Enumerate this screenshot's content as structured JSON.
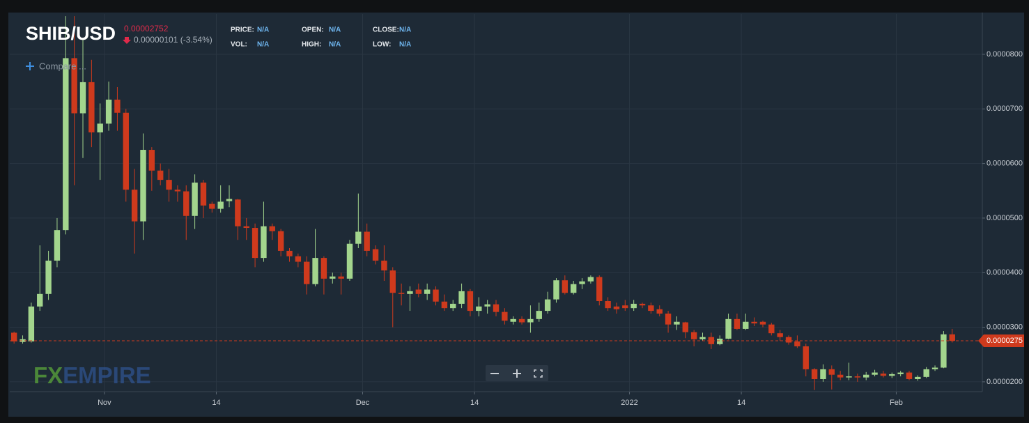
{
  "header": {
    "symbol": "SHIB/USD",
    "price": "0.00002752",
    "change": "0.00000101 (-3.54%)",
    "stats": [
      {
        "label": "PRICE:",
        "value": "N/A"
      },
      {
        "label": "VOL:",
        "value": "N/A"
      },
      {
        "label": "OPEN:",
        "value": "N/A"
      },
      {
        "label": "HIGH:",
        "value": "N/A"
      },
      {
        "label": "CLOSE:",
        "value": "N/A"
      },
      {
        "label": "LOW:",
        "value": "N/A"
      }
    ],
    "compare": "Compare ...",
    "logo": [
      "FX",
      "EMPIRE"
    ]
  },
  "chart_data": {
    "type": "candlestick",
    "x": [
      "2021-10-21",
      "2021-10-22",
      "2021-10-23",
      "2021-10-24",
      "2021-10-25",
      "2021-10-26",
      "2021-10-27",
      "2021-10-28",
      "2021-10-29",
      "2021-10-30",
      "2021-10-31",
      "2021-11-01",
      "2021-11-02",
      "2021-11-03",
      "2021-11-04",
      "2021-11-05",
      "2021-11-06",
      "2021-11-07",
      "2021-11-08",
      "2021-11-09",
      "2021-11-10",
      "2021-11-11",
      "2021-11-12",
      "2021-11-13",
      "2021-11-14",
      "2021-11-15",
      "2021-11-16",
      "2021-11-17",
      "2021-11-18",
      "2021-11-19",
      "2021-11-20",
      "2021-11-21",
      "2021-11-22",
      "2021-11-23",
      "2021-11-24",
      "2021-11-25",
      "2021-11-26",
      "2021-11-27",
      "2021-11-28",
      "2021-11-29",
      "2021-11-30",
      "2021-12-01",
      "2021-12-02",
      "2021-12-03",
      "2021-12-04",
      "2021-12-05",
      "2021-12-06",
      "2021-12-07",
      "2021-12-08",
      "2021-12-09",
      "2021-12-10",
      "2021-12-11",
      "2021-12-12",
      "2021-12-13",
      "2021-12-14",
      "2021-12-15",
      "2021-12-16",
      "2021-12-17",
      "2021-12-18",
      "2021-12-19",
      "2021-12-20",
      "2021-12-21",
      "2021-12-22",
      "2021-12-23",
      "2021-12-24",
      "2021-12-25",
      "2021-12-26",
      "2021-12-27",
      "2021-12-28",
      "2021-12-29",
      "2021-12-30",
      "2021-12-31",
      "2022-01-01",
      "2022-01-02",
      "2022-01-03",
      "2022-01-04",
      "2022-01-05",
      "2022-01-06",
      "2022-01-07",
      "2022-01-08",
      "2022-01-09",
      "2022-01-10",
      "2022-01-11",
      "2022-01-12",
      "2022-01-13",
      "2022-01-14",
      "2022-01-15",
      "2022-01-16",
      "2022-01-17",
      "2022-01-18",
      "2022-01-19",
      "2022-01-20",
      "2022-01-21",
      "2022-01-22",
      "2022-01-23",
      "2022-01-24",
      "2022-01-25",
      "2022-01-26",
      "2022-01-27",
      "2022-01-28",
      "2022-01-29",
      "2022-01-30",
      "2022-01-31",
      "2022-02-01",
      "2022-02-02",
      "2022-02-03",
      "2022-02-04",
      "2022-02-05",
      "2022-02-06",
      "2022-02-07"
    ],
    "open": [
      2.9e-05,
      2.73e-05,
      2.74e-05,
      3.38e-05,
      3.61e-05,
      4.22e-05,
      4.78e-05,
      7.93e-05,
      6.92e-05,
      7.49e-05,
      6.57e-05,
      6.73e-05,
      7.17e-05,
      6.93e-05,
      5.52e-05,
      4.94e-05,
      6.25e-05,
      5.87e-05,
      5.7e-05,
      5.52e-05,
      5.49e-05,
      5.04e-05,
      5.65e-05,
      5.26e-05,
      5.17e-05,
      5.31e-05,
      5.34e-05,
      4.85e-05,
      4.82e-05,
      4.27e-05,
      4.85e-05,
      4.76e-05,
      4.4e-05,
      4.3e-05,
      4.2e-05,
      3.79e-05,
      4.27e-05,
      3.89e-05,
      3.93e-05,
      3.89e-05,
      4.53e-05,
      4.75e-05,
      4.43e-05,
      4.22e-05,
      4.04e-05,
      3.63e-05,
      3.61e-05,
      3.69e-05,
      3.61e-05,
      3.69e-05,
      3.47e-05,
      3.35e-05,
      3.43e-05,
      3.66e-05,
      3.3e-05,
      3.38e-05,
      3.42e-05,
      3.28e-05,
      3.1e-05,
      3.15e-05,
      3.09e-05,
      3.15e-05,
      3.3e-05,
      3.51e-05,
      3.86e-05,
      3.63e-05,
      3.79e-05,
      3.84e-05,
      3.92e-05,
      3.48e-05,
      3.38e-05,
      3.4e-05,
      3.35e-05,
      3.43e-05,
      3.4e-05,
      3.33e-05,
      3.25e-05,
      3.05e-05,
      3.09e-05,
      2.91e-05,
      2.78e-05,
      2.82e-05,
      2.69e-05,
      2.79e-05,
      3.15e-05,
      2.97e-05,
      3.1e-05,
      3.1e-05,
      3.05e-05,
      2.89e-05,
      2.82e-05,
      2.74e-05,
      2.65e-05,
      2.23e-05,
      2.05e-05,
      2.23e-05,
      2.13e-05,
      2.08e-05,
      2.1e-05,
      2.08e-05,
      2.13e-05,
      2.15e-05,
      2.11e-05,
      2.14e-05,
      2.17e-05,
      2.05e-05,
      2.09e-05,
      2.23e-05,
      2.26e-05,
      2.87e-05
    ],
    "high": [
      2.92e-05,
      2.85e-05,
      3.45e-05,
      4.5e-05,
      4.4e-05,
      5e-05,
      8.7e-05,
      8.7e-05,
      8.3e-05,
      7.9e-05,
      7.1e-05,
      7.5e-05,
      7.4e-05,
      7e-05,
      5.9e-05,
      6.55e-05,
      6.3e-05,
      6e-05,
      5.9e-05,
      5.6e-05,
      5.6e-05,
      5.8e-05,
      5.7e-05,
      5.3e-05,
      5.6e-05,
      5.6e-05,
      5.35e-05,
      5e-05,
      4.9e-05,
      5.3e-05,
      4.9e-05,
      4.8e-05,
      4.45e-05,
      4.35e-05,
      4.3e-05,
      4.8e-05,
      4.3e-05,
      4e-05,
      4e-05,
      4.6e-05,
      5.45e-05,
      4.9e-05,
      4.5e-05,
      4.5e-05,
      4.1e-05,
      3.8e-05,
      3.75e-05,
      3.8e-05,
      3.8e-05,
      3.75e-05,
      3.6e-05,
      3.5e-05,
      3.8e-05,
      3.7e-05,
      3.55e-05,
      3.5e-05,
      3.5e-05,
      3.35e-05,
      3.2e-05,
      3.2e-05,
      3.4e-05,
      3.45e-05,
      3.65e-05,
      3.9e-05,
      3.95e-05,
      3.85e-05,
      3.9e-05,
      3.95e-05,
      3.95e-05,
      3.55e-05,
      3.45e-05,
      3.5e-05,
      3.5e-05,
      3.45e-05,
      3.45e-05,
      3.4e-05,
      3.3e-05,
      3.2e-05,
      3.1e-05,
      2.95e-05,
      2.9e-05,
      2.9e-05,
      2.85e-05,
      3.25e-05,
      3.25e-05,
      3.25e-05,
      3.18e-05,
      3.12e-05,
      3.08e-05,
      2.95e-05,
      2.85e-05,
      2.85e-05,
      2.7e-05,
      2.25e-05,
      2.32e-05,
      2.3e-05,
      2.2e-05,
      2.35e-05,
      2.15e-05,
      2.18e-05,
      2.22e-05,
      2.2e-05,
      2.17e-05,
      2.2e-05,
      2.2e-05,
      2.12e-05,
      2.27e-05,
      2.3e-05,
      2.93e-05,
      2.97e-05
    ],
    "low": [
      2.7e-05,
      2.7e-05,
      2.72e-05,
      3.3e-05,
      3.5e-05,
      4.1e-05,
      4.7e-05,
      5.6e-05,
      6.1e-05,
      6.3e-05,
      5.7e-05,
      6.6e-05,
      6.6e-05,
      5.3e-05,
      4.35e-05,
      4.6e-05,
      5.5e-05,
      5.6e-05,
      5.3e-05,
      5.3e-05,
      4.6e-05,
      4.8e-05,
      5e-05,
      5.1e-05,
      5.1e-05,
      5.2e-05,
      4.6e-05,
      4.6e-05,
      4.1e-05,
      4.2e-05,
      4.6e-05,
      4.3e-05,
      4.2e-05,
      4.1e-05,
      3.6e-05,
      3.75e-05,
      3.6e-05,
      3.8e-05,
      3.6e-05,
      3.85e-05,
      4.45e-05,
      4.3e-05,
      4.15e-05,
      3.85e-05,
      3e-05,
      3.4e-05,
      3.3e-05,
      3.55e-05,
      3.5e-05,
      3.4e-05,
      3.3e-05,
      3.3e-05,
      3.35e-05,
      3.2e-05,
      3.2e-05,
      3.25e-05,
      3.2e-05,
      3.05e-05,
      3.05e-05,
      3.05e-05,
      2.9e-05,
      3.1e-05,
      3.25e-05,
      3.45e-05,
      3.6e-05,
      3.6e-05,
      3.7e-05,
      3.8e-05,
      3.4e-05,
      3.3e-05,
      3.25e-05,
      3.3e-05,
      3.3e-05,
      3.35e-05,
      3.25e-05,
      3.2e-05,
      2.9e-05,
      2.95e-05,
      2.8e-05,
      2.65e-05,
      2.75e-05,
      2.6e-05,
      2.67e-05,
      2.78e-05,
      2.95e-05,
      2.95e-05,
      3.02e-05,
      3e-05,
      2.85e-05,
      2.75e-05,
      2.68e-05,
      2.62e-05,
      2.1e-05,
      1.85e-05,
      2e-05,
      1.86e-05,
      2.03e-05,
      2.03e-05,
      2e-05,
      2.03e-05,
      2.1e-05,
      2.08e-05,
      2.07e-05,
      2.1e-05,
      2.03e-05,
      2.02e-05,
      2.07e-05,
      2.2e-05,
      2.25e-05,
      2.72e-05
    ],
    "close": [
      2.74e-05,
      2.78e-05,
      3.38e-05,
      3.61e-05,
      4.22e-05,
      4.78e-05,
      7.93e-05,
      6.92e-05,
      7.49e-05,
      6.57e-05,
      6.73e-05,
      7.17e-05,
      6.93e-05,
      5.52e-05,
      4.94e-05,
      6.25e-05,
      5.87e-05,
      5.7e-05,
      5.52e-05,
      5.49e-05,
      5.04e-05,
      5.65e-05,
      5.23e-05,
      5.17e-05,
      5.3e-05,
      5.35e-05,
      4.85e-05,
      4.82e-05,
      4.27e-05,
      4.85e-05,
      4.76e-05,
      4.4e-05,
      4.3e-05,
      4.2e-05,
      3.79e-05,
      4.27e-05,
      3.89e-05,
      3.93e-05,
      3.89e-05,
      4.53e-05,
      4.75e-05,
      4.4e-05,
      4.22e-05,
      4.04e-05,
      3.63e-05,
      3.61e-05,
      3.66e-05,
      3.61e-05,
      3.69e-05,
      3.47e-05,
      3.35e-05,
      3.43e-05,
      3.66e-05,
      3.3e-05,
      3.38e-05,
      3.42e-05,
      3.28e-05,
      3.12e-05,
      3.15e-05,
      3.09e-05,
      3.15e-05,
      3.3e-05,
      3.51e-05,
      3.86e-05,
      3.63e-05,
      3.79e-05,
      3.84e-05,
      3.92e-05,
      3.48e-05,
      3.35e-05,
      3.33e-05,
      3.35e-05,
      3.43e-05,
      3.4e-05,
      3.3e-05,
      3.25e-05,
      3.05e-05,
      3.1e-05,
      2.91e-05,
      2.78e-05,
      2.82e-05,
      2.69e-05,
      2.79e-05,
      3.15e-05,
      2.97e-05,
      3.1e-05,
      3.07e-05,
      3.05e-05,
      2.89e-05,
      2.82e-05,
      2.72e-05,
      2.65e-05,
      2.23e-05,
      2.05e-05,
      2.23e-05,
      2.13e-05,
      2.08e-05,
      2.1e-05,
      2.08e-05,
      2.13e-05,
      2.17e-05,
      2.11e-05,
      2.14e-05,
      2.17e-05,
      2.05e-05,
      2.09e-05,
      2.23e-05,
      2.26e-05,
      2.87e-05,
      2.75e-05
    ],
    "up_color": "#a3d58d",
    "down_color": "#cf3a1d",
    "last_price": {
      "value": 2.752e-05,
      "label": "0.0000275"
    },
    "xlim": [
      "2021-10-21",
      "2022-02-11"
    ],
    "xticks": [
      {
        "value": "2021-11-01",
        "label": "Nov"
      },
      {
        "value": "2021-11-14",
        "label": "14"
      },
      {
        "value": "2021-12-01",
        "label": "Dec"
      },
      {
        "value": "2021-12-14",
        "label": "14"
      },
      {
        "value": "2022-01-01",
        "label": "2022"
      },
      {
        "value": "2022-01-14",
        "label": "14"
      },
      {
        "value": "2022-02-01",
        "label": "Feb"
      }
    ],
    "ylim": [
      1.82e-05,
      8.74e-05
    ],
    "yticks": [
      {
        "value": 2e-05,
        "label": "0.0000200"
      },
      {
        "value": 3e-05,
        "label": "0.0000300"
      },
      {
        "value": 4e-05,
        "label": "0.0000400"
      },
      {
        "value": 5e-05,
        "label": "0.0000500"
      },
      {
        "value": 6e-05,
        "label": "0.0000600"
      },
      {
        "value": 7e-05,
        "label": "0.0000700"
      },
      {
        "value": 8e-05,
        "label": "0.0000800"
      }
    ],
    "grid": true
  }
}
